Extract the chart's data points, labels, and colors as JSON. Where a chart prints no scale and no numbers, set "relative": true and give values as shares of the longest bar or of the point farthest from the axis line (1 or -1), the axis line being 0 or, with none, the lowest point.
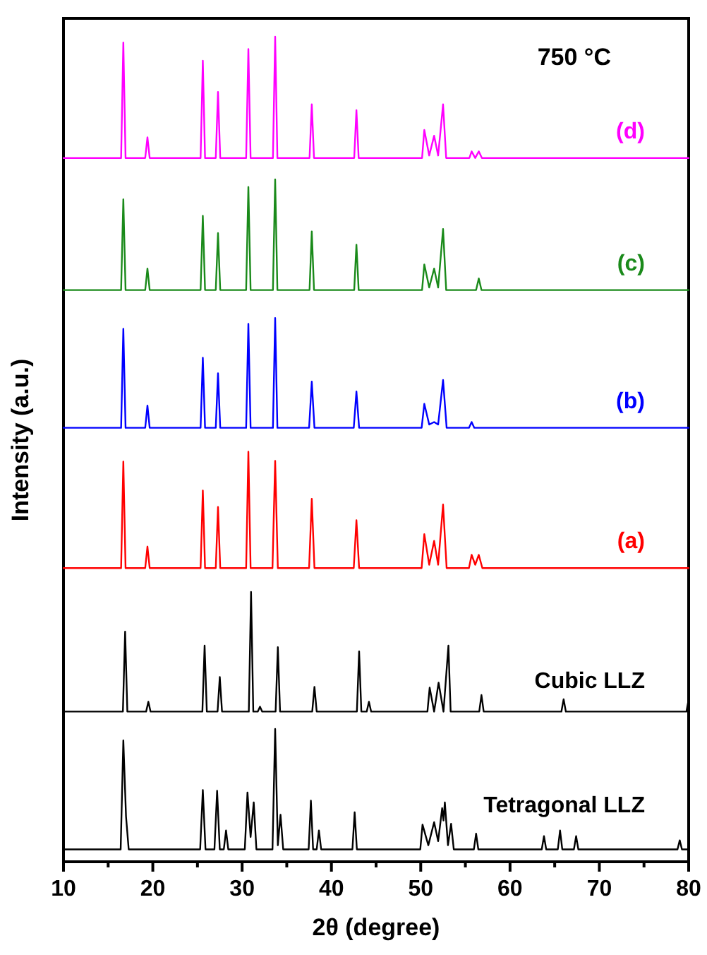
{
  "chart_data": {
    "type": "line",
    "relative": true,
    "xlabel": "2θ (degree)",
    "ylabel": "Intensity (a.u.)",
    "xlim": [
      10,
      80
    ],
    "xticks": [
      10,
      {
        "value": 15,
        "label": null
      },
      20,
      {
        "value": 25,
        "label": null
      },
      30,
      {
        "value": 35,
        "label": null
      },
      40,
      {
        "value": 45,
        "label": null
      },
      50,
      {
        "value": 55,
        "label": null
      },
      60,
      {
        "value": 65,
        "label": null
      },
      70,
      {
        "value": 75,
        "label": null
      },
      80
    ],
    "annotations": [
      "750 °C"
    ],
    "series": [
      {
        "name": "(d)",
        "color": "#ff00ff",
        "x": [
          10,
          16.45,
          16.7,
          16.95,
          19.15,
          19.4,
          19.65,
          25.35,
          25.6,
          25.85,
          27.05,
          27.3,
          27.55,
          30.45,
          30.7,
          30.95,
          33.45,
          33.7,
          33.95,
          37.55,
          37.8,
          38.05,
          42.55,
          42.8,
          43.05,
          50.15,
          50.4,
          50.95,
          51.5,
          51.95,
          52.5,
          52.85,
          55.45,
          55.7,
          56.1,
          56.5,
          56.85,
          80
        ],
        "values": [
          0.853,
          0.853,
          0.993,
          0.853,
          0.853,
          0.878,
          0.853,
          0.853,
          0.971,
          0.853,
          0.853,
          0.933,
          0.853,
          0.853,
          0.985,
          0.853,
          0.853,
          1.0,
          0.853,
          0.853,
          0.918,
          0.853,
          0.853,
          0.911,
          0.853,
          0.853,
          0.887,
          0.856,
          0.88,
          0.856,
          0.918,
          0.853,
          0.853,
          0.861,
          0.853,
          0.861,
          0.853,
          0.853
        ]
      },
      {
        "name": "(c)",
        "color": "#1a8a1a",
        "x": [
          10,
          16.45,
          16.7,
          16.95,
          19.15,
          19.4,
          19.65,
          25.35,
          25.6,
          25.85,
          27.05,
          27.3,
          27.55,
          30.45,
          30.7,
          30.95,
          33.45,
          33.7,
          33.95,
          37.55,
          37.8,
          38.05,
          42.55,
          42.8,
          43.05,
          50.15,
          50.4,
          50.95,
          51.5,
          51.95,
          52.5,
          52.85,
          56.2,
          56.5,
          56.8,
          80
        ],
        "values": [
          0.693,
          0.693,
          0.803,
          0.693,
          0.693,
          0.719,
          0.693,
          0.693,
          0.783,
          0.693,
          0.693,
          0.762,
          0.693,
          0.693,
          0.818,
          0.693,
          0.693,
          0.827,
          0.693,
          0.693,
          0.764,
          0.693,
          0.693,
          0.748,
          0.693,
          0.693,
          0.724,
          0.696,
          0.719,
          0.696,
          0.767,
          0.693,
          0.693,
          0.707,
          0.693,
          0.693
        ]
      },
      {
        "name": "(b)",
        "color": "#0000ff",
        "x": [
          10,
          16.45,
          16.7,
          16.95,
          19.15,
          19.4,
          19.65,
          25.35,
          25.6,
          25.85,
          27.05,
          27.3,
          27.55,
          30.45,
          30.7,
          30.95,
          33.45,
          33.7,
          33.95,
          37.5,
          37.8,
          38.1,
          42.5,
          42.8,
          43.1,
          50.1,
          50.4,
          50.95,
          51.5,
          51.95,
          52.5,
          52.9,
          55.4,
          55.7,
          56.0,
          80
        ],
        "values": [
          0.526,
          0.526,
          0.646,
          0.526,
          0.526,
          0.553,
          0.526,
          0.526,
          0.611,
          0.526,
          0.526,
          0.592,
          0.526,
          0.526,
          0.652,
          0.526,
          0.526,
          0.659,
          0.526,
          0.526,
          0.582,
          0.526,
          0.526,
          0.57,
          0.526,
          0.526,
          0.555,
          0.53,
          0.533,
          0.53,
          0.584,
          0.526,
          0.526,
          0.533,
          0.526,
          0.526
        ]
      },
      {
        "name": "(a)",
        "color": "#ff0000",
        "x": [
          10,
          16.45,
          16.7,
          16.95,
          19.15,
          19.4,
          19.65,
          25.35,
          25.6,
          25.85,
          27.05,
          27.3,
          27.55,
          30.45,
          30.7,
          30.95,
          33.4,
          33.7,
          34.0,
          37.5,
          37.8,
          38.1,
          42.5,
          42.8,
          43.1,
          50.1,
          50.4,
          50.95,
          51.5,
          51.95,
          52.5,
          52.9,
          55.4,
          55.7,
          56.1,
          56.5,
          56.9,
          80
        ],
        "values": [
          0.356,
          0.356,
          0.485,
          0.356,
          0.356,
          0.382,
          0.356,
          0.356,
          0.45,
          0.356,
          0.356,
          0.43,
          0.356,
          0.356,
          0.497,
          0.356,
          0.356,
          0.486,
          0.356,
          0.356,
          0.44,
          0.356,
          0.356,
          0.414,
          0.356,
          0.356,
          0.397,
          0.36,
          0.389,
          0.36,
          0.433,
          0.356,
          0.356,
          0.372,
          0.36,
          0.372,
          0.356,
          0.356
        ]
      },
      {
        "name": "Cubic LLZ",
        "color": "#000000",
        "x": [
          10,
          16.65,
          16.9,
          17.15,
          19.25,
          19.5,
          19.75,
          25.55,
          25.8,
          26.05,
          27.25,
          27.5,
          27.75,
          30.75,
          31.0,
          31.25,
          31.75,
          32.0,
          32.25,
          33.75,
          34.0,
          34.25,
          37.85,
          38.1,
          38.35,
          42.85,
          43.1,
          43.35,
          43.95,
          44.2,
          44.45,
          50.75,
          51.0,
          51.5,
          52.0,
          52.55,
          53.1,
          53.35,
          56.55,
          56.8,
          57.05,
          65.75,
          66.0,
          66.25,
          79.75,
          80
        ],
        "values": [
          0.182,
          0.182,
          0.279,
          0.182,
          0.182,
          0.194,
          0.182,
          0.182,
          0.262,
          0.182,
          0.182,
          0.224,
          0.182,
          0.182,
          0.327,
          0.182,
          0.182,
          0.188,
          0.182,
          0.182,
          0.26,
          0.182,
          0.182,
          0.212,
          0.182,
          0.182,
          0.255,
          0.182,
          0.182,
          0.194,
          0.182,
          0.182,
          0.211,
          0.182,
          0.217,
          0.182,
          0.262,
          0.182,
          0.182,
          0.202,
          0.182,
          0.182,
          0.197,
          0.182,
          0.182,
          0.197
        ]
      },
      {
        "name": "Tetragonal LLZ",
        "color": "#000000",
        "x": [
          10,
          16.4,
          16.7,
          17.0,
          17.3,
          25.3,
          25.6,
          25.9,
          26.9,
          27.2,
          27.5,
          27.95,
          28.2,
          28.45,
          30.3,
          30.6,
          30.95,
          31.3,
          31.6,
          33.4,
          33.7,
          34.0,
          34.3,
          34.6,
          37.45,
          37.7,
          37.95,
          38.35,
          38.6,
          38.85,
          42.35,
          42.6,
          42.85,
          49.95,
          50.2,
          50.85,
          51.5,
          51.95,
          52.4,
          52.55,
          52.7,
          53.05,
          53.4,
          53.7,
          55.95,
          56.2,
          56.45,
          63.55,
          63.8,
          64.05,
          65.35,
          65.6,
          65.85,
          67.15,
          67.4,
          67.65,
          78.75,
          79.0,
          79.25,
          80
        ],
        "values": [
          0.015,
          0.015,
          0.147,
          0.055,
          0.015,
          0.015,
          0.087,
          0.015,
          0.015,
          0.086,
          0.015,
          0.015,
          0.038,
          0.015,
          0.015,
          0.084,
          0.03,
          0.072,
          0.015,
          0.015,
          0.161,
          0.02,
          0.057,
          0.015,
          0.015,
          0.074,
          0.015,
          0.015,
          0.038,
          0.015,
          0.015,
          0.06,
          0.015,
          0.015,
          0.045,
          0.02,
          0.048,
          0.025,
          0.065,
          0.05,
          0.072,
          0.02,
          0.046,
          0.015,
          0.015,
          0.034,
          0.015,
          0.015,
          0.031,
          0.015,
          0.015,
          0.038,
          0.015,
          0.015,
          0.031,
          0.015,
          0.015,
          0.026,
          0.015,
          0.015
        ]
      }
    ]
  }
}
